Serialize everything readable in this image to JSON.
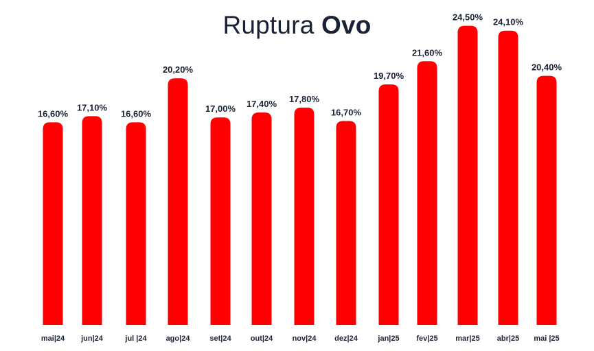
{
  "title": {
    "prefix": "Ruptura",
    "highlight": "Ovo"
  },
  "colors": {
    "bar": "#ff0000",
    "text": "#1a2236",
    "background": "#ffffff"
  },
  "chart_data": {
    "type": "bar",
    "title": "Ruptura Ovo",
    "xlabel": "",
    "ylabel": "",
    "grid": false,
    "ylim": [
      0,
      25.6
    ],
    "categories": [
      "mai|24",
      "jun|24",
      "jul |24",
      "ago|24",
      "set|24",
      "out|24",
      "nov|24",
      "dez|24",
      "jan|25",
      "fev|25",
      "mar|25",
      "abr|25",
      "mai |25"
    ],
    "values": [
      16.6,
      17.1,
      16.6,
      20.2,
      17.0,
      17.4,
      17.8,
      16.7,
      19.7,
      21.6,
      24.5,
      24.1,
      20.4
    ],
    "value_labels": [
      "16,60%",
      "17,10%",
      "16,60%",
      "20,20%",
      "17,00%",
      "17,40%",
      "17,80%",
      "16,70%",
      "19,70%",
      "21,60%",
      "24,50%",
      "24,10%",
      "20,40%"
    ]
  }
}
